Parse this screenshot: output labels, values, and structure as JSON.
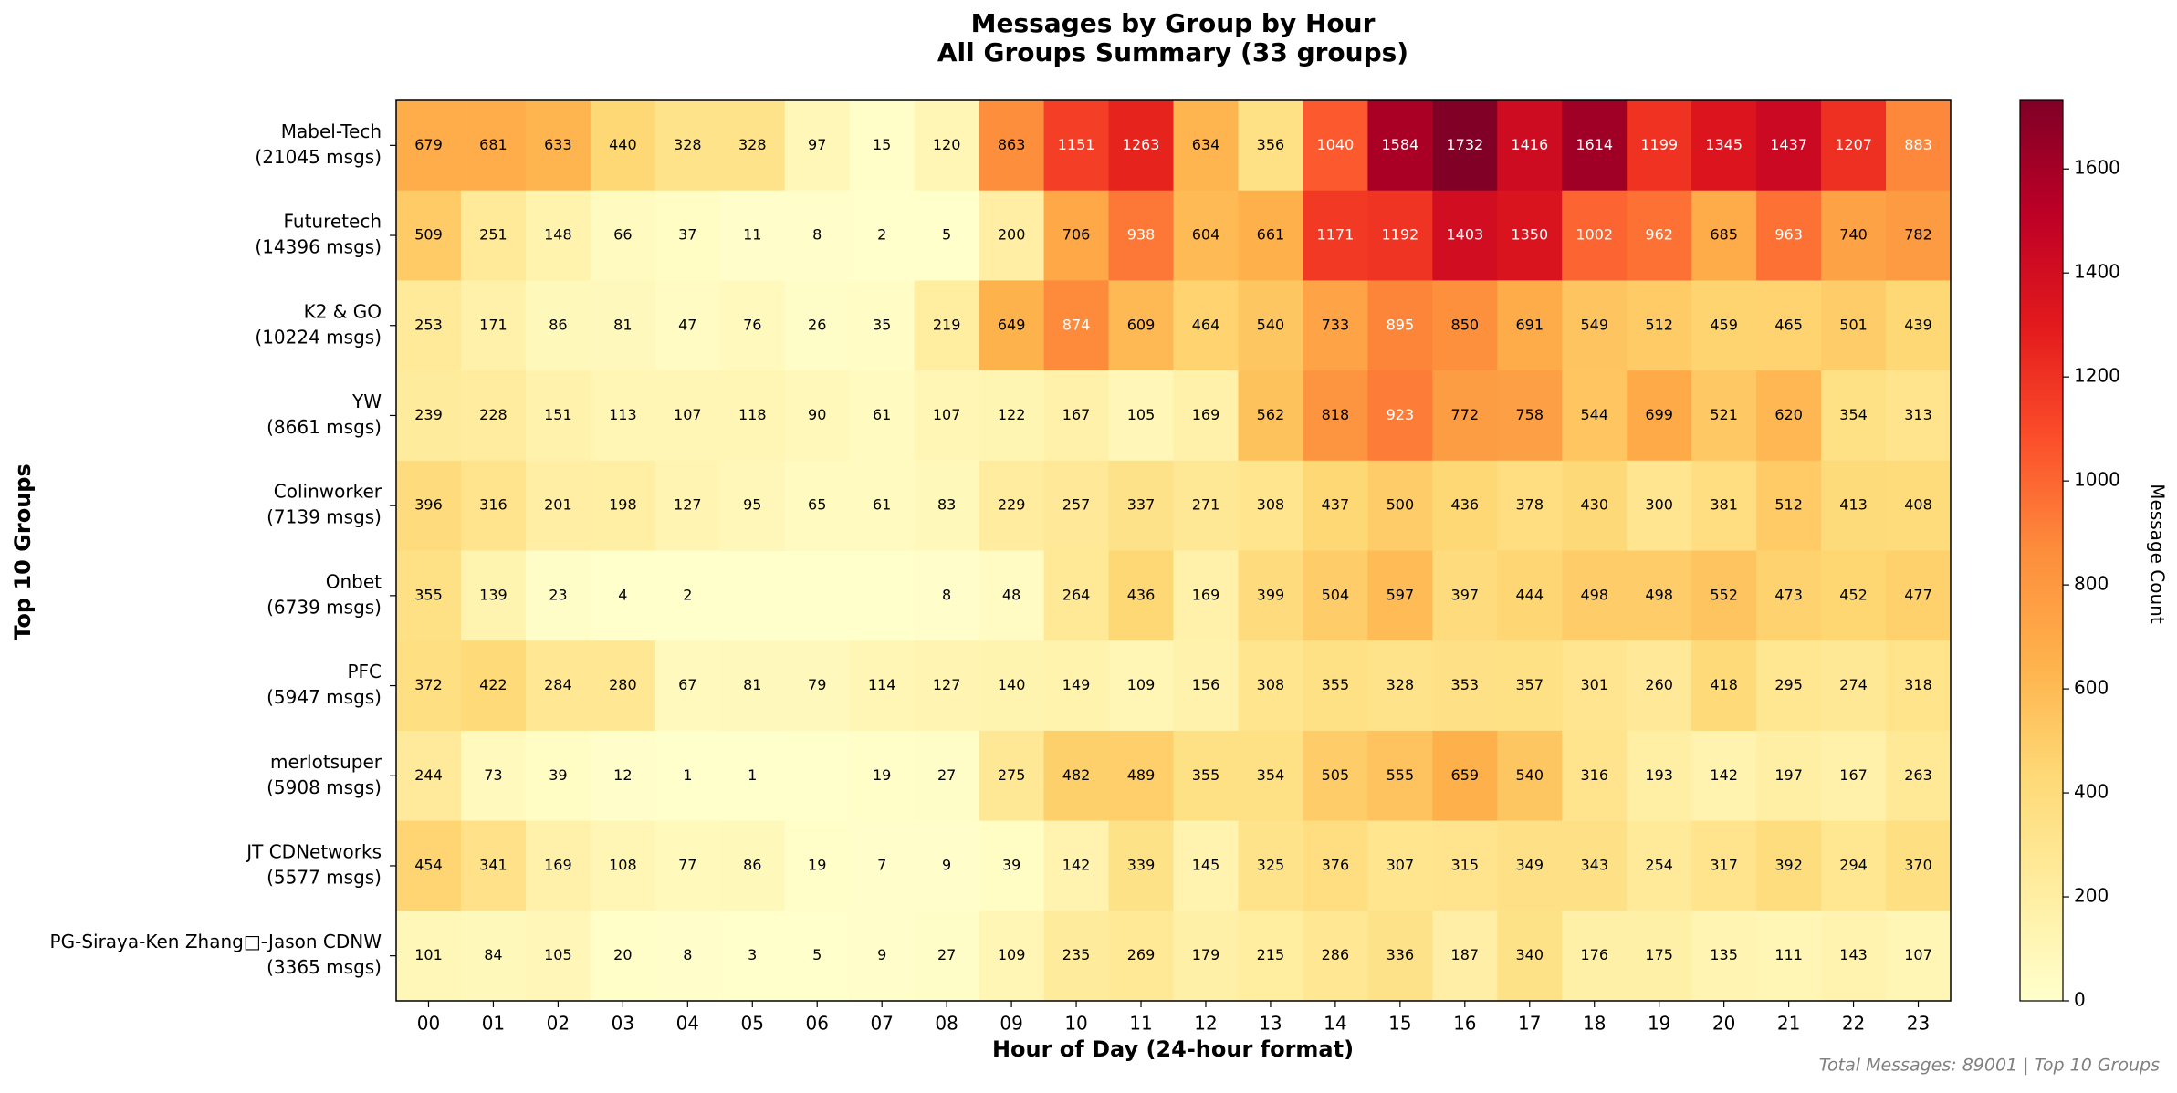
{
  "chart_data": {
    "type": "heatmap",
    "title": "Messages by Group by Hour",
    "subtitle": "All Groups Summary (33 groups)",
    "x_label": "Hour of Day (24-hour format)",
    "y_label": "Top 10 Groups",
    "footer": "Total Messages: 89001 | Top 10 Groups",
    "categories": [
      "00",
      "01",
      "02",
      "03",
      "04",
      "05",
      "06",
      "07",
      "08",
      "09",
      "10",
      "11",
      "12",
      "13",
      "14",
      "15",
      "16",
      "17",
      "18",
      "19",
      "20",
      "21",
      "22",
      "23"
    ],
    "series": [
      {
        "name": "Mabel-Tech",
        "total_label": "(21045 msgs)",
        "values": [
          679,
          681,
          633,
          440,
          328,
          328,
          97,
          15,
          120,
          863,
          1151,
          1263,
          634,
          356,
          1040,
          1584,
          1732,
          1416,
          1614,
          1199,
          1345,
          1437,
          1207,
          883
        ]
      },
      {
        "name": "Futuretech",
        "total_label": "(14396 msgs)",
        "values": [
          509,
          251,
          148,
          66,
          37,
          11,
          8,
          2,
          5,
          200,
          706,
          938,
          604,
          661,
          1171,
          1192,
          1403,
          1350,
          1002,
          962,
          685,
          963,
          740,
          782
        ]
      },
      {
        "name": "K2 & GO",
        "total_label": "(10224 msgs)",
        "values": [
          253,
          171,
          86,
          81,
          47,
          76,
          26,
          35,
          219,
          649,
          874,
          609,
          464,
          540,
          733,
          895,
          850,
          691,
          549,
          512,
          459,
          465,
          501,
          439
        ]
      },
      {
        "name": "YW",
        "total_label": "(8661 msgs)",
        "values": [
          239,
          228,
          151,
          113,
          107,
          118,
          90,
          61,
          107,
          122,
          167,
          105,
          169,
          562,
          818,
          923,
          772,
          758,
          544,
          699,
          521,
          620,
          354,
          313
        ]
      },
      {
        "name": "Colinworker",
        "total_label": "(7139 msgs)",
        "values": [
          396,
          316,
          201,
          198,
          127,
          95,
          65,
          61,
          83,
          229,
          257,
          337,
          271,
          308,
          437,
          500,
          436,
          378,
          430,
          300,
          381,
          512,
          413,
          408
        ]
      },
      {
        "name": "Onbet",
        "total_label": "(6739 msgs)",
        "values": [
          355,
          139,
          23,
          4,
          2,
          null,
          null,
          null,
          8,
          48,
          264,
          436,
          169,
          399,
          504,
          597,
          397,
          444,
          498,
          498,
          552,
          473,
          452,
          477
        ]
      },
      {
        "name": "PFC",
        "total_label": "(5947 msgs)",
        "values": [
          372,
          422,
          284,
          280,
          67,
          81,
          79,
          114,
          127,
          140,
          149,
          109,
          156,
          308,
          355,
          328,
          353,
          357,
          301,
          260,
          418,
          295,
          274,
          318
        ]
      },
      {
        "name": "merlotsuper",
        "total_label": "(5908 msgs)",
        "values": [
          244,
          73,
          39,
          12,
          1,
          1,
          null,
          19,
          27,
          275,
          482,
          489,
          355,
          354,
          505,
          555,
          659,
          540,
          316,
          193,
          142,
          197,
          167,
          263
        ]
      },
      {
        "name": "JT CDNetworks",
        "total_label": "(5577 msgs)",
        "values": [
          454,
          341,
          169,
          108,
          77,
          86,
          19,
          7,
          9,
          39,
          142,
          339,
          145,
          325,
          376,
          307,
          315,
          349,
          343,
          254,
          317,
          392,
          294,
          370
        ]
      },
      {
        "name": "PG-Siraya-Ken Zhang□-Jason CDNW",
        "total_label": "(3365 msgs)",
        "values": [
          101,
          84,
          105,
          20,
          8,
          3,
          5,
          9,
          27,
          109,
          235,
          269,
          179,
          215,
          286,
          336,
          187,
          340,
          176,
          175,
          135,
          111,
          143,
          107
        ]
      }
    ],
    "colorbar": {
      "label": "Message Count",
      "lim": [
        0,
        1732
      ],
      "ticks": [
        0,
        200,
        400,
        600,
        800,
        1000,
        1200,
        1400,
        1600
      ]
    },
    "colormap": [
      "#ffffcc",
      "#ffeda0",
      "#fed976",
      "#feb24c",
      "#fd8d3c",
      "#fc4e2a",
      "#e31a1c",
      "#bd0026",
      "#800026"
    ]
  }
}
